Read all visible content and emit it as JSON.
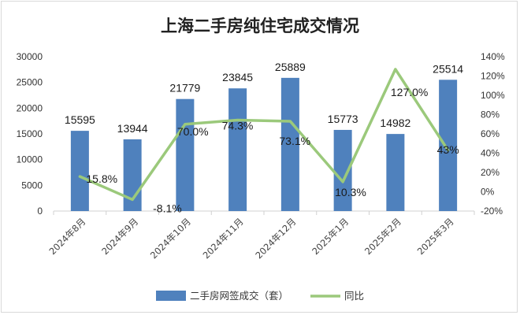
{
  "chart_data": {
    "type": "bar",
    "title": "上海二手房纯住宅成交情况",
    "categories": [
      "2024年8月",
      "2024年9月",
      "2024年10月",
      "2024年11月",
      "2024年12月",
      "2025年1月",
      "2025年2月",
      "2025年3月"
    ],
    "series": [
      {
        "name": "二手房网签成交（套）",
        "type": "bar",
        "axis": "left",
        "color": "#4f81bd",
        "values": [
          15595,
          13944,
          21779,
          23845,
          25889,
          15773,
          14982,
          25514
        ],
        "labels": [
          "15595",
          "13944",
          "21779",
          "23845",
          "25889",
          "15773",
          "14982",
          "25514"
        ]
      },
      {
        "name": "同比",
        "type": "line",
        "axis": "right",
        "color": "#9bc97b",
        "values": [
          15.8,
          -8.1,
          70.0,
          74.3,
          73.1,
          10.3,
          127.0,
          43
        ],
        "labels": [
          "15.8%",
          "-8.1%",
          "70.0%",
          "74.3%",
          "73.1%",
          "10.3%",
          "127.0%",
          "43%"
        ]
      }
    ],
    "y_left": {
      "ylim": [
        0,
        30000
      ],
      "ticks": [
        "0",
        "5000",
        "10000",
        "15000",
        "20000",
        "25000",
        "30000"
      ]
    },
    "y_right": {
      "ylim": [
        -20,
        140
      ],
      "ticks": [
        "-20%",
        "0%",
        "20%",
        "40%",
        "60%",
        "80%",
        "100%",
        "120%",
        "140%"
      ]
    },
    "grid": false,
    "legend": "bottom"
  }
}
